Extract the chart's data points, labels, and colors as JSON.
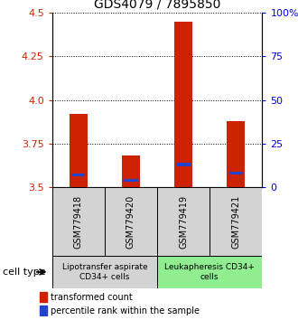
{
  "title": "GDS4079 / 7895850",
  "samples": [
    "GSM779418",
    "GSM779420",
    "GSM779419",
    "GSM779421"
  ],
  "transformed_counts": [
    3.92,
    3.68,
    4.45,
    3.88
  ],
  "percentile_ranks": [
    3.57,
    3.54,
    3.63,
    3.58
  ],
  "bar_bottom": 3.5,
  "ylim": [
    3.5,
    4.5
  ],
  "yticks_left": [
    3.5,
    3.75,
    4.0,
    4.25,
    4.5
  ],
  "yticks_right_vals": [
    0,
    25,
    50,
    75,
    100
  ],
  "yticks_right_labels": [
    "0",
    "25",
    "50",
    "75",
    "100%"
  ],
  "red_color": "#cc2200",
  "blue_color": "#2244cc",
  "bar_width": 0.35,
  "cell_types": [
    {
      "label": "Lipotransfer aspirate\nCD34+ cells",
      "col_indices": [
        0,
        1
      ],
      "color": "#d3d3d3"
    },
    {
      "label": "Leukapheresis CD34+\ncells",
      "col_indices": [
        2,
        3
      ],
      "color": "#90ee90"
    }
  ],
  "xlabel_label": "cell type",
  "legend_red": "transformed count",
  "legend_blue": "percentile rank within the sample",
  "title_fontsize": 10,
  "tick_fontsize": 8,
  "sample_fontsize": 7,
  "legend_fontsize": 7,
  "cell_type_fontsize": 6.5
}
